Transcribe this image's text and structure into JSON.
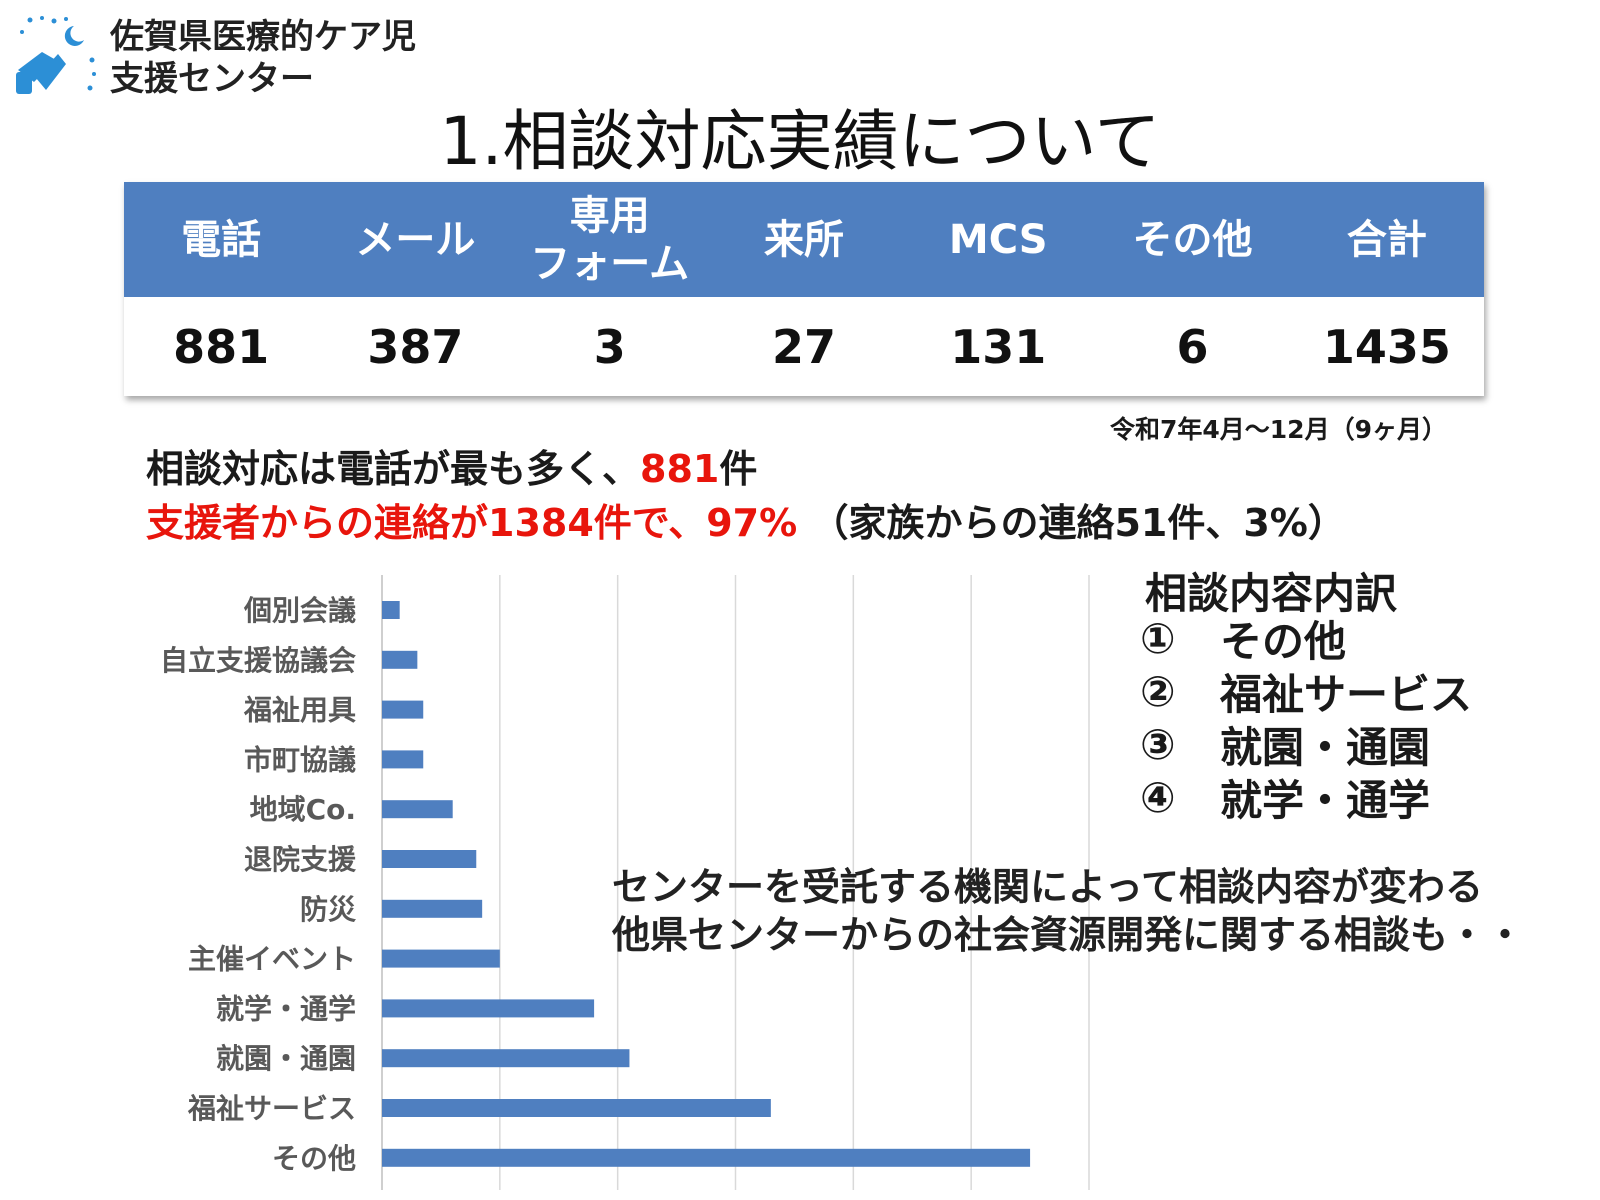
{
  "header": {
    "org_line1": "佐賀県医療的ケア児",
    "org_line2": "支援センター",
    "title": "1.相談対応実績について"
  },
  "stats": {
    "headers": [
      "電話",
      "メール",
      "専用\nフォーム",
      "来所",
      "MCS",
      "その他",
      "合計"
    ],
    "values": [
      "881",
      "387",
      "3",
      "27",
      "131",
      "6",
      "1435"
    ],
    "period": "令和7年4月～12月（9ヶ月）"
  },
  "notes": {
    "line1_prefix": "相談対応は電話が最も多く、",
    "line1_highlight": "881",
    "line1_suffix": "件",
    "line2_highlight": "支援者からの連絡が1384件で、97%",
    "line2_rest": "（家族からの連絡51件、3%）"
  },
  "legend": {
    "title": "相談内容内訳",
    "items": [
      {
        "num": "①",
        "label": "その他"
      },
      {
        "num": "②",
        "label": "福祉サービス"
      },
      {
        "num": "③",
        "label": "就園・通園"
      },
      {
        "num": "④",
        "label": "就学・通学"
      }
    ]
  },
  "remarks": {
    "line1": "センターを受託する機関によって相談内容が変わる",
    "line2": "他県センターからの社会資源開発に関する相談も・・"
  },
  "colors": {
    "header_bg": "#4f7fc0",
    "bar": "#4f7fc0",
    "highlight": "#e8150c"
  },
  "chart_data": {
    "type": "bar",
    "orientation": "horizontal",
    "categories": [
      "個別会議",
      "自立支援協議会",
      "福祉用具",
      "市町協議",
      "地域Co.",
      "退院支援",
      "防災",
      "主催イベント",
      "就学・通学",
      "就園・通園",
      "福祉サービス",
      "その他"
    ],
    "values": [
      6,
      12,
      14,
      14,
      24,
      32,
      34,
      40,
      72,
      84,
      132,
      220
    ],
    "xlim": [
      0,
      240
    ],
    "grid": true,
    "series": [
      {
        "values": [
          6,
          12,
          14,
          14,
          24,
          32,
          34,
          40,
          72,
          84,
          132,
          220
        ]
      }
    ]
  }
}
